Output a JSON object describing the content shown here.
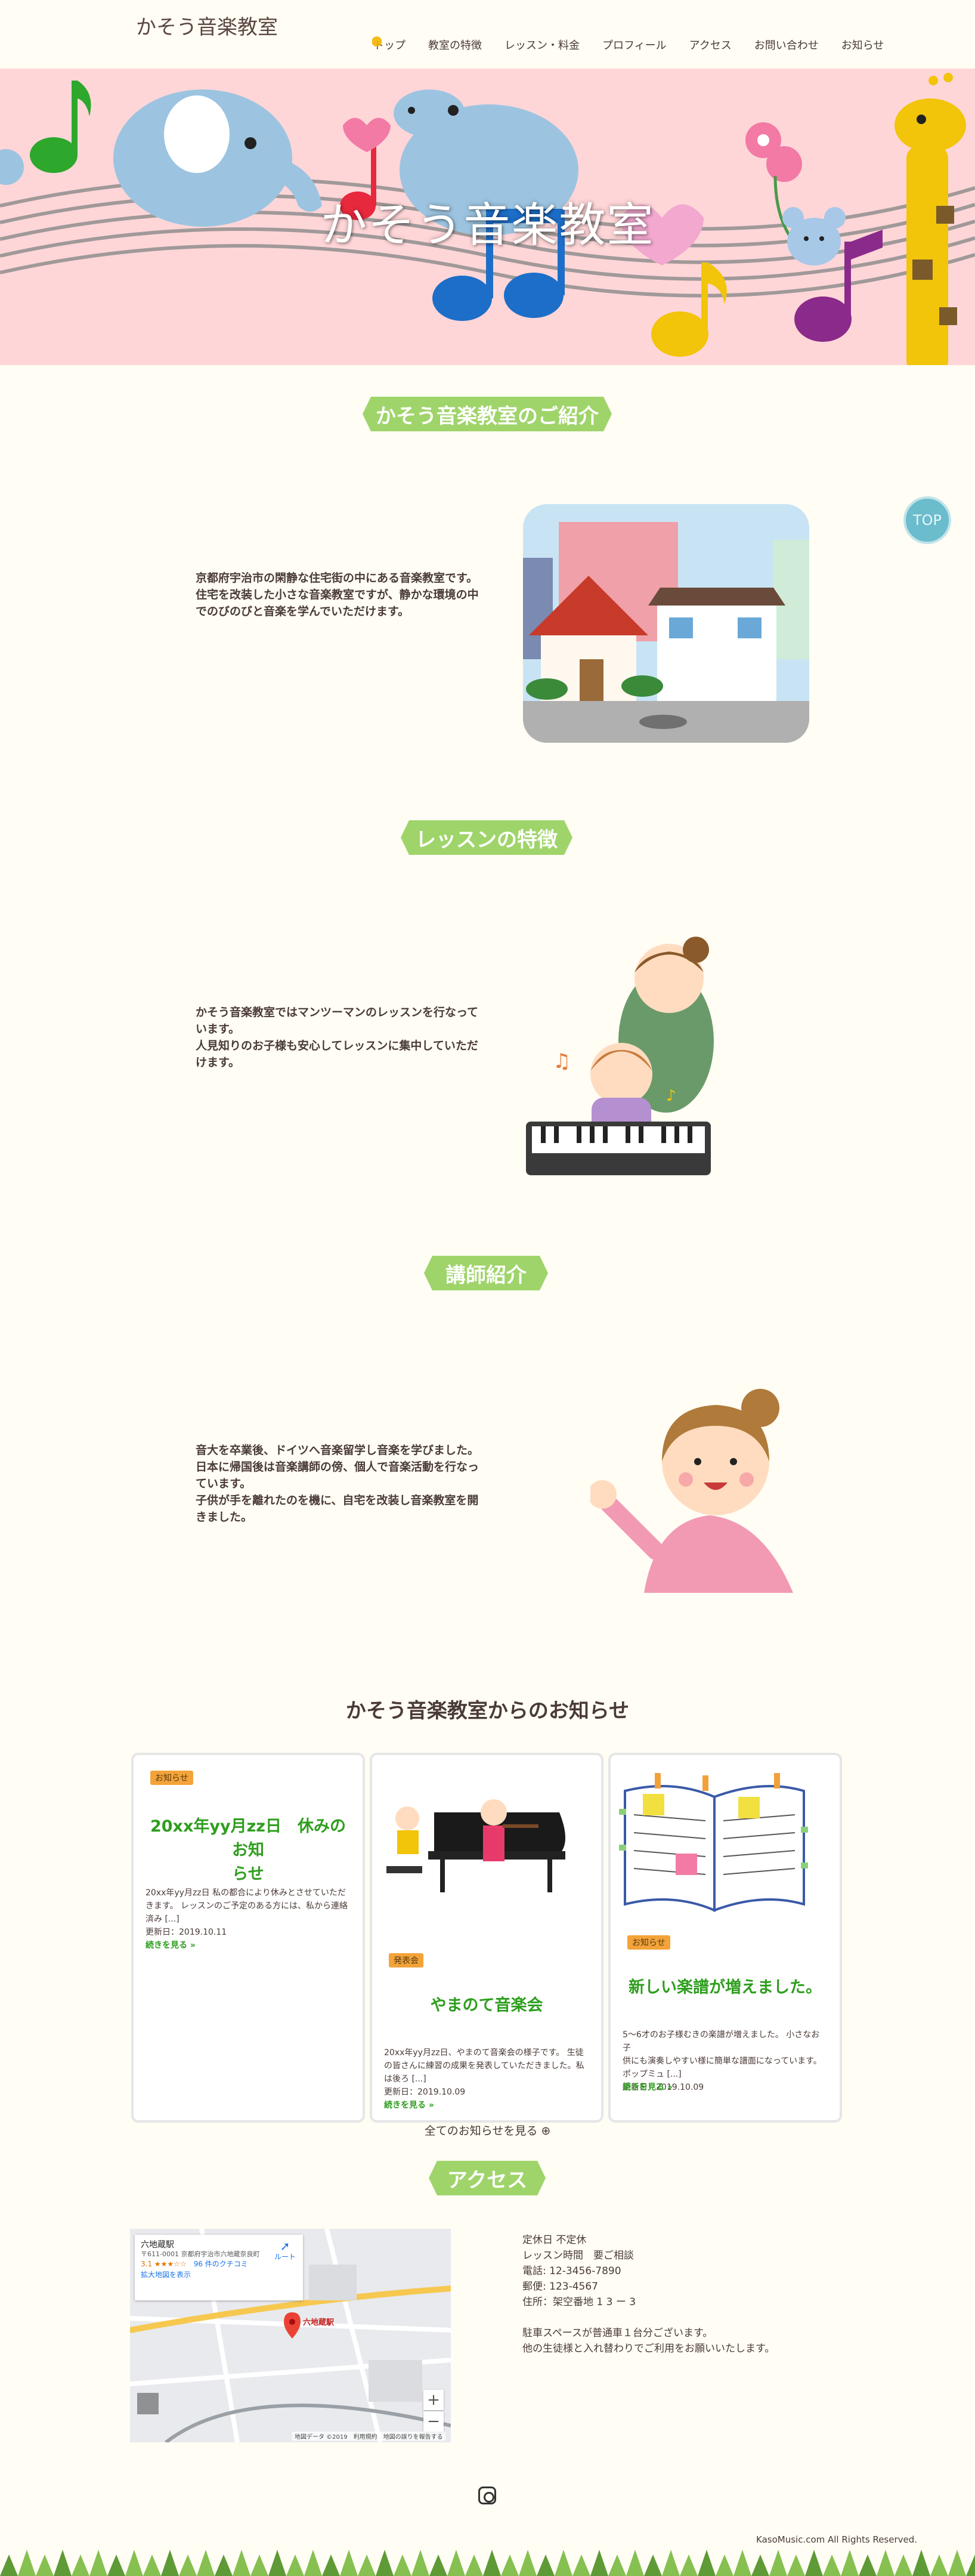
{
  "header": {
    "site_title": "かそう音楽教室",
    "nav": [
      "トップ",
      "教室の特徴",
      "レッスン・料金",
      "プロフィール",
      "アクセス",
      "お問い合わせ",
      "お知らせ"
    ]
  },
  "hero": {
    "title": "かそう音楽教室"
  },
  "sections": {
    "intro": {
      "heading": "かそう音楽教室のご紹介",
      "lines": [
        "京都府宇治市の閑静な住宅街の中にある音楽教室です。",
        "住宅を改装した小さな音楽教室ですが、静かな環境の中",
        "でのびのびと音楽を学んでいただけます。"
      ]
    },
    "features": {
      "heading": "レッスンの特徴",
      "lines": [
        "かそう音楽教室ではマンツーマンのレッスンを行なって",
        "います。",
        "人見知りのお子様も安心してレッスンに集中していただ",
        "けます。"
      ]
    },
    "teacher": {
      "heading": "講師紹介",
      "lines": [
        "音大を卒業後、ドイツへ音楽留学し音楽を学びました。",
        "日本に帰国後は音楽講師の傍、個人で音楽活動を行なっ",
        "ています。",
        "子供が手を離れたのを機に、自宅を改装し音楽教室を開",
        "きました。"
      ]
    }
  },
  "top_button": "TOP",
  "news": {
    "heading": "かそう音楽教室からのお知らせ",
    "cards": [
      {
        "badge": "お知らせ",
        "title_lines": [
          "20xx年yy月zz日　休みのお知",
          "らせ"
        ],
        "text_lines": [
          "20xx年yy月zz日 私の都合により休みとさせていただ",
          "きます。 レッスンのご予定のある方には、私から連絡",
          "済み [...]"
        ],
        "updated": "更新日：2019.10.11",
        "more": "続きを見る »"
      },
      {
        "badge": "発表会",
        "title_lines": [
          "やまのて音楽会"
        ],
        "text_lines": [
          "20xx年yy月zz日、やまのて音楽会の様子です。 生徒",
          "の皆さんに練習の成果を発表していただきました。私",
          "は後ろ [...]"
        ],
        "updated": "更新日：2019.10.09",
        "more": "続きを見る »"
      },
      {
        "badge": "お知らせ",
        "title_lines": [
          "新しい楽譜が増えました。"
        ],
        "text_lines": [
          "5〜6才のお子様むきの楽譜が増えました。 小さなお子",
          "供にも演奏しやすい様に簡単な譜面になっています。",
          "ポップミュ [...]"
        ],
        "updated": "更新日：2019.10.09",
        "more": "続きを見る »"
      }
    ],
    "all_link": "全てのお知らせを見る ⊕"
  },
  "access": {
    "heading": "アクセス",
    "map": {
      "place_name": "六地蔵駅",
      "address": "〒611-0001 京都府宇治市六地蔵奈良町",
      "rating": "3.1 ★★★☆☆",
      "reviews": "96 件のクチコミ",
      "enlarge": "拡大地図を表示",
      "route": "ルート",
      "station_label": "六地蔵駅",
      "footer": "地図データ ©2019　利用規約　地図の誤りを報告する"
    },
    "info_lines": [
      "定休日 不定休",
      "レッスン時間　要ご相談",
      "電話: 12-3456-7890",
      "郵便: 123-4567",
      "住所：架空番地 1 3 ー 3",
      "",
      "駐車スペースが普通車１台分ございます。",
      "他の生徒様と入れ替わりでご利用をお願いいたします。"
    ]
  },
  "footer": {
    "copyright": "KasoMusic.com All Rights Reserved."
  }
}
